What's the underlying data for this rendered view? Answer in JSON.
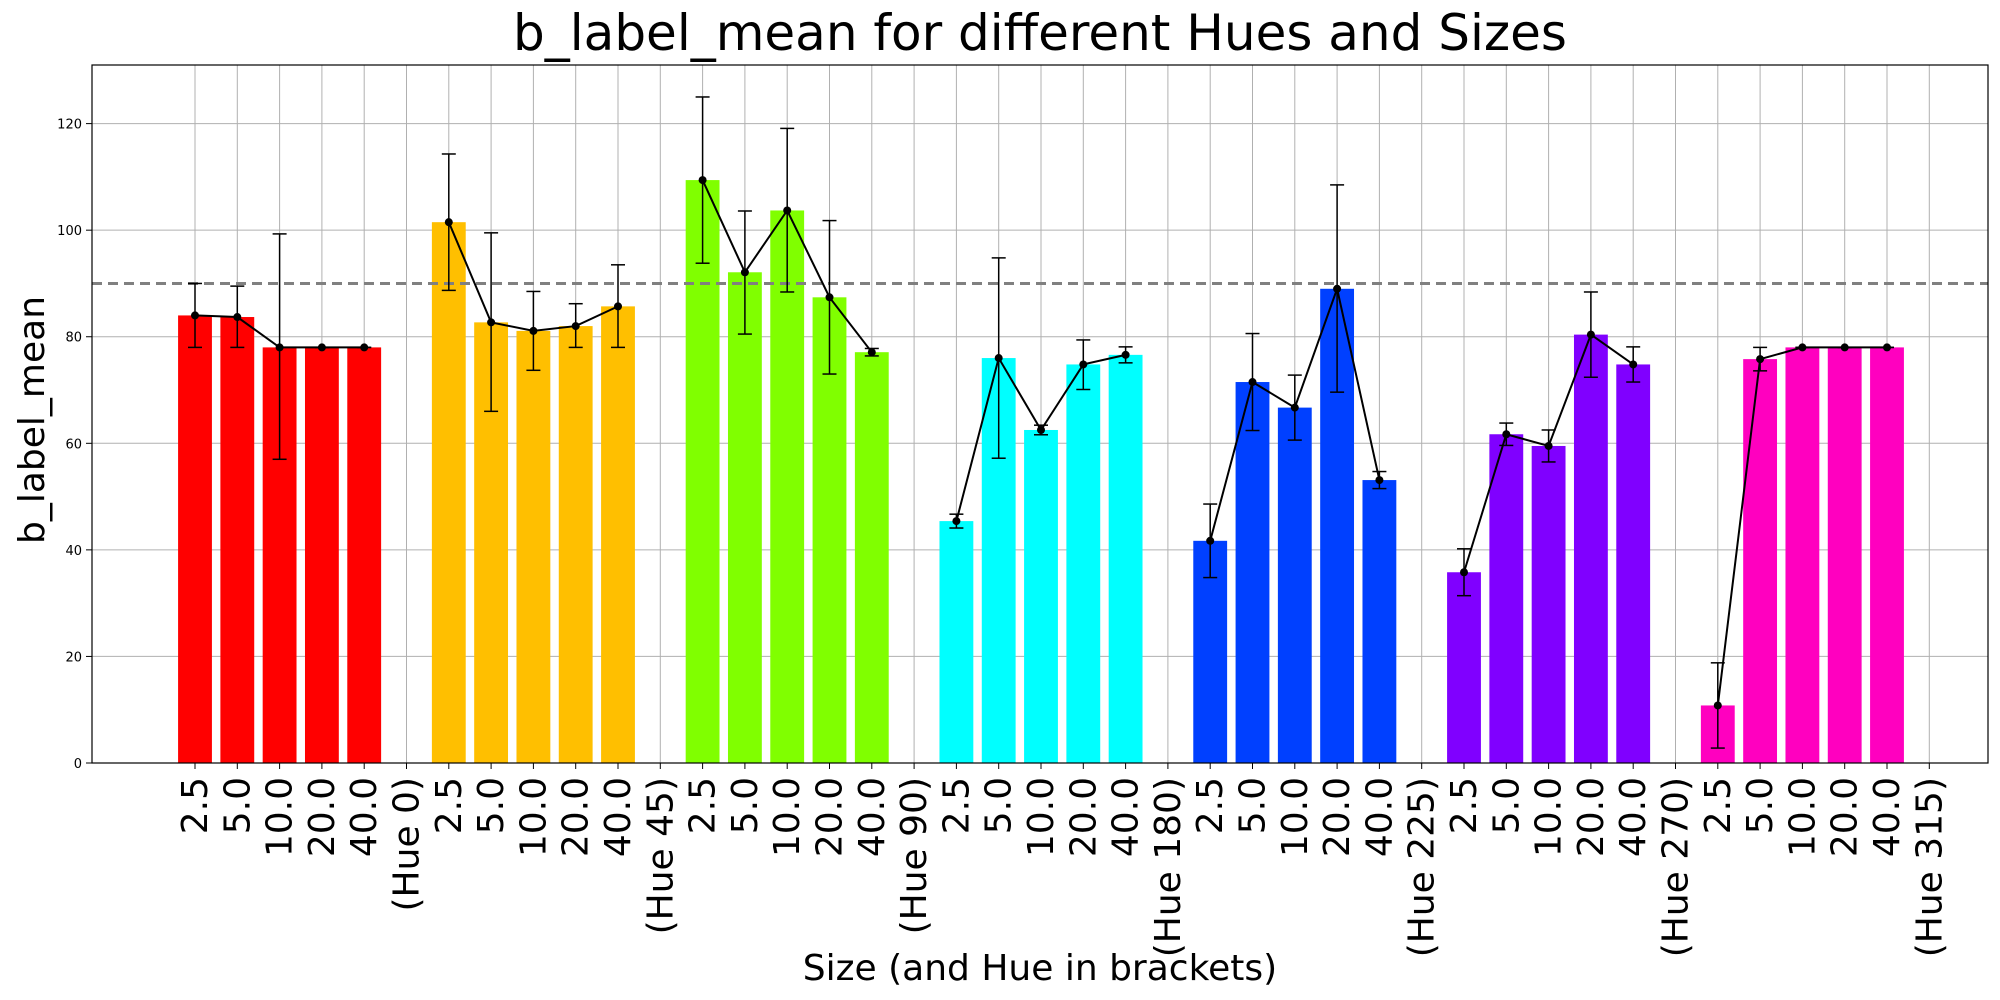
{
  "chart_data": {
    "type": "bar",
    "title": "b_label_mean for different Hues and Sizes",
    "xlabel": "Size (and Hue in brackets)",
    "ylabel": "b_label_mean",
    "ylim": [
      0,
      131
    ],
    "yticks": [
      0,
      20,
      40,
      60,
      80,
      100,
      120
    ],
    "grid": true,
    "reference_line": 90,
    "sizes": [
      "2.5",
      "5.0",
      "10.0",
      "20.0",
      "40.0"
    ],
    "groups": [
      {
        "hue_label": "(Hue 0)",
        "color": "#ff0000",
        "values": [
          84.0,
          83.7,
          78.0,
          78.0,
          78.0
        ],
        "err_low": [
          78.0,
          78.0,
          57.0,
          78.0,
          78.0
        ],
        "err_high": [
          90.0,
          89.5,
          99.3,
          78.0,
          78.0
        ]
      },
      {
        "hue_label": "(Hue 45)",
        "color": "#ffbf00",
        "values": [
          101.5,
          82.7,
          81.1,
          82.0,
          85.7
        ],
        "err_low": [
          88.7,
          66.0,
          73.7,
          78.0,
          78.0
        ],
        "err_high": [
          114.3,
          99.5,
          88.5,
          86.2,
          93.5
        ]
      },
      {
        "hue_label": "(Hue 90)",
        "color": "#80ff00",
        "values": [
          109.4,
          92.1,
          103.7,
          87.4,
          77.1
        ],
        "err_low": [
          93.8,
          80.5,
          88.4,
          73.0,
          76.4
        ],
        "err_high": [
          125.0,
          103.6,
          119.1,
          101.8,
          77.8
        ]
      },
      {
        "hue_label": "(Hue 180)",
        "color": "#00ffff",
        "values": [
          45.4,
          76.0,
          62.5,
          74.8,
          76.6
        ],
        "err_low": [
          44.1,
          57.2,
          61.6,
          70.1,
          75.1
        ],
        "err_high": [
          46.7,
          94.8,
          63.4,
          79.4,
          78.1
        ]
      },
      {
        "hue_label": "(Hue 225)",
        "color": "#0040ff",
        "values": [
          41.7,
          71.5,
          66.7,
          89.0,
          53.1
        ],
        "err_low": [
          34.8,
          62.4,
          60.6,
          69.6,
          51.5
        ],
        "err_high": [
          48.6,
          80.6,
          72.8,
          108.5,
          54.7
        ]
      },
      {
        "hue_label": "(Hue 270)",
        "color": "#8000ff",
        "values": [
          35.8,
          61.7,
          59.5,
          80.4,
          74.8
        ],
        "err_low": [
          31.4,
          59.6,
          56.5,
          72.4,
          71.5
        ],
        "err_high": [
          40.2,
          63.8,
          62.5,
          88.4,
          78.1
        ]
      },
      {
        "hue_label": "(Hue 315)",
        "color": "#ff00bf",
        "values": [
          10.8,
          75.8,
          78.0,
          78.0,
          78.0
        ],
        "err_low": [
          2.8,
          73.6,
          78.0,
          78.0,
          78.0
        ],
        "err_high": [
          18.8,
          78.0,
          78.0,
          78.0,
          78.0
        ]
      }
    ]
  }
}
